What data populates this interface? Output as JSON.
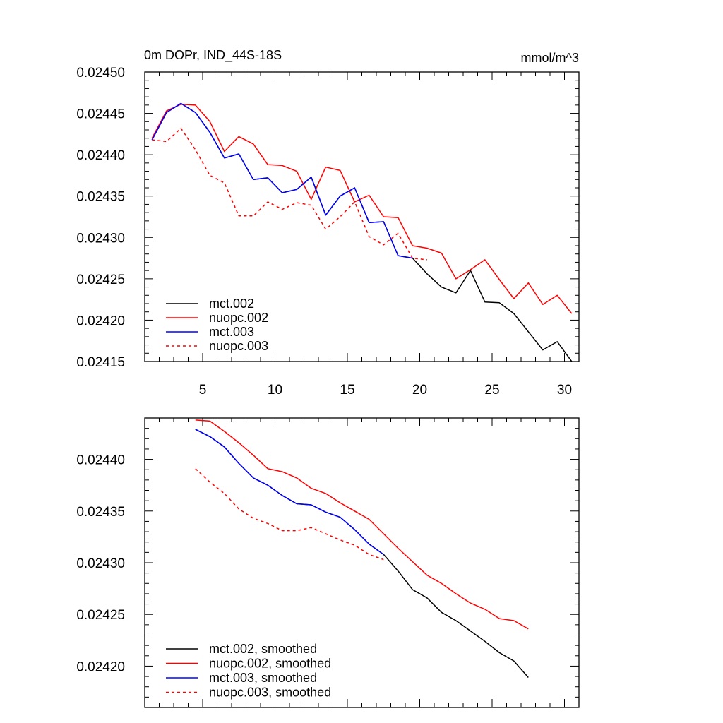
{
  "chart_data": [
    {
      "type": "line",
      "title": "0m DOPr, IND_44S-18S",
      "units": "mmol/m^3",
      "xlabel": "",
      "ylabel": "",
      "xlim": [
        1,
        31
      ],
      "ylim": [
        0.02415,
        0.0245
      ],
      "x_ticks": [
        5,
        10,
        15,
        20,
        25,
        30
      ],
      "y_ticks": [
        0.02415,
        0.0242,
        0.02425,
        0.0243,
        0.02435,
        0.0244,
        0.02445,
        0.0245
      ],
      "y_tick_labels": [
        "0.02415",
        "0.02420",
        "0.02425",
        "0.02430",
        "0.02435",
        "0.02440",
        "0.02445",
        "0.02450"
      ],
      "legend_position": "bottom-left",
      "series": [
        {
          "name": "mct.002",
          "color": "#000000",
          "dash": "solid",
          "x": [
            1.5,
            2.5,
            3.5,
            4.5,
            5.5,
            6.5,
            7.5,
            8.5,
            9.5,
            10.5,
            11.5,
            12.5,
            13.5,
            14.5,
            15.5,
            16.5,
            17.5,
            18.5,
            19.5,
            20.5,
            21.5,
            22.5,
            23.5,
            24.5,
            25.5,
            26.5,
            27.5,
            28.5,
            29.5,
            30.5
          ],
          "values": [
            0.024418,
            0.024451,
            0.024462,
            0.024451,
            0.024427,
            0.024396,
            0.024401,
            0.02437,
            0.024372,
            0.024354,
            0.024358,
            0.024373,
            0.024327,
            0.02435,
            0.02436,
            0.024318,
            0.024319,
            0.024278,
            0.024275,
            0.024256,
            0.02424,
            0.024233,
            0.02426,
            0.024222,
            0.024221,
            0.024208,
            0.024186,
            0.024164,
            0.024174,
            0.02415
          ]
        },
        {
          "name": "nuopc.002",
          "color": "#ff0000",
          "dash": "solid",
          "x": [
            1.5,
            2.5,
            3.5,
            4.5,
            5.5,
            6.5,
            7.5,
            8.5,
            9.5,
            10.5,
            11.5,
            12.5,
            13.5,
            14.5,
            15.5,
            16.5,
            17.5,
            18.5,
            19.5,
            20.5,
            21.5,
            22.5,
            23.5,
            24.5,
            25.5,
            26.5,
            27.5,
            28.5,
            29.5,
            30.5
          ],
          "values": [
            0.02442,
            0.024453,
            0.024461,
            0.02446,
            0.02444,
            0.024404,
            0.024422,
            0.024413,
            0.024388,
            0.024387,
            0.02438,
            0.024346,
            0.024385,
            0.024381,
            0.024343,
            0.024351,
            0.024325,
            0.024324,
            0.02429,
            0.024287,
            0.024281,
            0.02425,
            0.024261,
            0.024273,
            0.024249,
            0.024226,
            0.024245,
            0.024219,
            0.02423,
            0.024208
          ]
        },
        {
          "name": "mct.003",
          "color": "#0000ff",
          "dash": "solid",
          "x": [
            1.5,
            2.5,
            3.5,
            4.5,
            5.5,
            6.5,
            7.5,
            8.5,
            9.5,
            10.5,
            11.5,
            12.5,
            13.5,
            14.5,
            15.5,
            16.5,
            17.5,
            18.5,
            19.5
          ],
          "values": [
            0.024418,
            0.024451,
            0.024462,
            0.024451,
            0.024427,
            0.024396,
            0.024401,
            0.02437,
            0.024372,
            0.024354,
            0.024358,
            0.024373,
            0.024327,
            0.02435,
            0.02436,
            0.024318,
            0.024319,
            0.024278,
            0.024275
          ]
        },
        {
          "name": "nuopc.003",
          "color": "#ff0000",
          "dash": "dashed",
          "x": [
            1.5,
            2.5,
            3.5,
            4.5,
            5.5,
            6.5,
            7.5,
            8.5,
            9.5,
            10.5,
            11.5,
            12.5,
            13.5,
            14.5,
            15.5,
            16.5,
            17.5,
            18.5,
            19.5,
            20.5
          ],
          "values": [
            0.024418,
            0.024416,
            0.024432,
            0.024406,
            0.024375,
            0.024366,
            0.024326,
            0.024326,
            0.024343,
            0.024334,
            0.024342,
            0.024339,
            0.02431,
            0.024325,
            0.024343,
            0.024301,
            0.024291,
            0.024305,
            0.024275,
            0.024273
          ]
        }
      ]
    },
    {
      "type": "line",
      "title": "",
      "xlabel": "",
      "ylabel": "",
      "xlim": [
        1,
        31
      ],
      "ylim": [
        0.02416,
        0.02444
      ],
      "x_ticks": [
        5,
        10,
        15,
        20,
        25,
        30
      ],
      "y_ticks": [
        0.0242,
        0.02425,
        0.0243,
        0.02435,
        0.0244
      ],
      "y_tick_labels": [
        "0.02420",
        "0.02425",
        "0.02430",
        "0.02435",
        "0.02440"
      ],
      "legend_position": "bottom-left",
      "series": [
        {
          "name": "mct.002, smoothed",
          "color": "#000000",
          "dash": "solid",
          "x": [
            4.5,
            5.5,
            6.5,
            7.5,
            8.5,
            9.5,
            10.5,
            11.5,
            12.5,
            13.5,
            14.5,
            15.5,
            16.5,
            17.5,
            18.5,
            19.5,
            20.5,
            21.5,
            22.5,
            23.5,
            24.5,
            25.5,
            26.5,
            27.5
          ],
          "values": [
            0.024429,
            0.024422,
            0.024412,
            0.024396,
            0.024382,
            0.024375,
            0.024365,
            0.024357,
            0.024356,
            0.024349,
            0.024344,
            0.024332,
            0.024318,
            0.024308,
            0.024292,
            0.024274,
            0.024266,
            0.024252,
            0.024244,
            0.024234,
            0.024224,
            0.024213,
            0.024205,
            0.024189
          ]
        },
        {
          "name": "nuopc.002, smoothed",
          "color": "#ff0000",
          "dash": "solid",
          "x": [
            4.5,
            5.5,
            6.5,
            7.5,
            8.5,
            9.5,
            10.5,
            11.5,
            12.5,
            13.5,
            14.5,
            15.5,
            16.5,
            17.5,
            18.5,
            19.5,
            20.5,
            21.5,
            22.5,
            23.5,
            24.5,
            25.5,
            26.5,
            27.5
          ],
          "values": [
            0.024438,
            0.024437,
            0.024427,
            0.024416,
            0.024404,
            0.024391,
            0.024388,
            0.024382,
            0.024372,
            0.024367,
            0.024358,
            0.02435,
            0.024342,
            0.024328,
            0.024314,
            0.024301,
            0.024288,
            0.02428,
            0.02427,
            0.024261,
            0.024255,
            0.024246,
            0.024244,
            0.024236
          ]
        },
        {
          "name": "mct.003, smoothed",
          "color": "#0000ff",
          "dash": "solid",
          "x": [
            4.5,
            5.5,
            6.5,
            7.5,
            8.5,
            9.5,
            10.5,
            11.5,
            12.5,
            13.5,
            14.5,
            15.5,
            16.5,
            17.5
          ],
          "values": [
            0.024429,
            0.024422,
            0.024412,
            0.024396,
            0.024382,
            0.024375,
            0.024365,
            0.024357,
            0.024356,
            0.024349,
            0.024344,
            0.024332,
            0.024318,
            0.024308
          ]
        },
        {
          "name": "nuopc.003, smoothed",
          "color": "#ff0000",
          "dash": "dashed",
          "x": [
            4.5,
            5.5,
            6.5,
            7.5,
            8.5,
            9.5,
            10.5,
            11.5,
            12.5,
            13.5,
            14.5,
            15.5,
            16.5,
            17.5
          ],
          "values": [
            0.024391,
            0.024378,
            0.024367,
            0.024352,
            0.024343,
            0.024338,
            0.024331,
            0.024331,
            0.024334,
            0.024328,
            0.024322,
            0.024317,
            0.024308,
            0.024303
          ]
        }
      ]
    }
  ]
}
